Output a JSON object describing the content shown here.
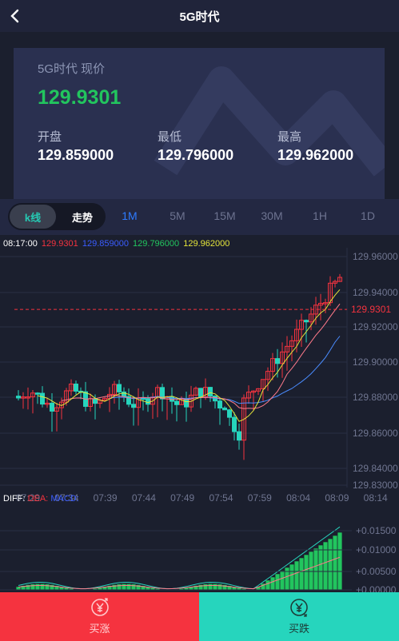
{
  "header": {
    "title": "5G时代"
  },
  "quote": {
    "name_line": "5G时代 现价",
    "current_price": "129.9301",
    "open_label": "开盘",
    "open_value": "129.859000",
    "low_label": "最低",
    "low_value": "129.796000",
    "high_label": "最高",
    "high_value": "129.962000"
  },
  "chart_tabs": {
    "kline_label": "k线",
    "trend_label": "走势",
    "periods": [
      "1M",
      "5M",
      "15M",
      "30M",
      "1H",
      "1D"
    ],
    "active_period": "1M"
  },
  "ohlc_legend": {
    "time": "08:17:00",
    "open": "129.9301",
    "close": "129.859000",
    "low": "129.796000",
    "high": "129.962000"
  },
  "macd_legend": {
    "diff_label": "DIFF:",
    "dea_label": "DEA:",
    "macd_label": "MACD:"
  },
  "colors": {
    "up": "#f5333f",
    "down": "#26d5bd",
    "price_green": "#22c55e",
    "ma5": "#e5e53a",
    "ma10": "#ff7a8a",
    "ma20": "#4a8cff",
    "active_tab": "#2e7bff"
  },
  "chart_data": {
    "type": "candlestick",
    "current_price_label": "129.9301",
    "current_price": 129.9301,
    "y_ticks": [
      129.96,
      129.94,
      129.92,
      129.9,
      129.88,
      129.86,
      129.84,
      129.83
    ],
    "y_tick_labels": [
      "129.96000",
      "129.94000",
      "129.92000",
      "129.90000",
      "129.88000",
      "129.86000",
      "129.84000",
      "129.83000"
    ],
    "x_labels": [
      "07:29",
      "07:34",
      "07:39",
      "07:44",
      "07:49",
      "07:54",
      "07:59",
      "08:04",
      "08:09",
      "08:14"
    ],
    "macd_y_ticks": [
      0.015,
      0.01,
      0.005,
      0.0
    ],
    "macd_y_tick_labels": [
      "+0.01500",
      "+0.01000",
      "+0.00500",
      "+0.00000"
    ]
  },
  "actions": {
    "buy_up_label": "买涨",
    "buy_down_label": "买跌"
  }
}
